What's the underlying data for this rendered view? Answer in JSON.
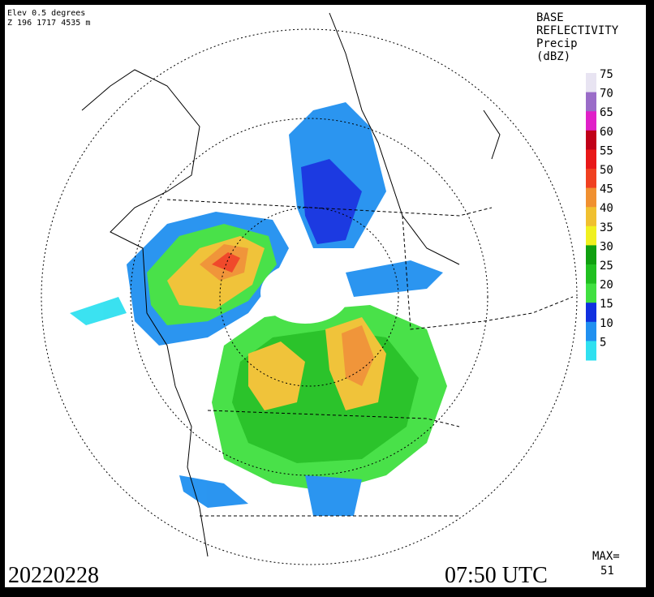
{
  "header": {
    "elevation": "Elev 0.5 degrees",
    "site_info": "Z 196 1717 4535 m"
  },
  "legend": {
    "title_lines": [
      "BASE",
      "REFLECTIVITY",
      "Precip",
      "(dBZ)"
    ],
    "items": [
      {
        "label": 75,
        "color": "#e8e4f2"
      },
      {
        "label": 70,
        "color": "#9a6cc8"
      },
      {
        "label": 65,
        "color": "#e020c8"
      },
      {
        "label": 60,
        "color": "#c00018"
      },
      {
        "label": 55,
        "color": "#e81818"
      },
      {
        "label": 50,
        "color": "#f04020"
      },
      {
        "label": 45,
        "color": "#f09030"
      },
      {
        "label": 40,
        "color": "#f0c030"
      },
      {
        "label": 35,
        "color": "#f0f020"
      },
      {
        "label": 30,
        "color": "#10a010"
      },
      {
        "label": 25,
        "color": "#20c020"
      },
      {
        "label": 20,
        "color": "#40e040"
      },
      {
        "label": 15,
        "color": "#1030e0"
      },
      {
        "label": 10,
        "color": "#2090f0"
      },
      {
        "label": 5,
        "color": "#30e0f0"
      }
    ]
  },
  "footer": {
    "date": "20220228",
    "time": "07:50 UTC",
    "max_label": "MAX=",
    "max_value": "51"
  }
}
